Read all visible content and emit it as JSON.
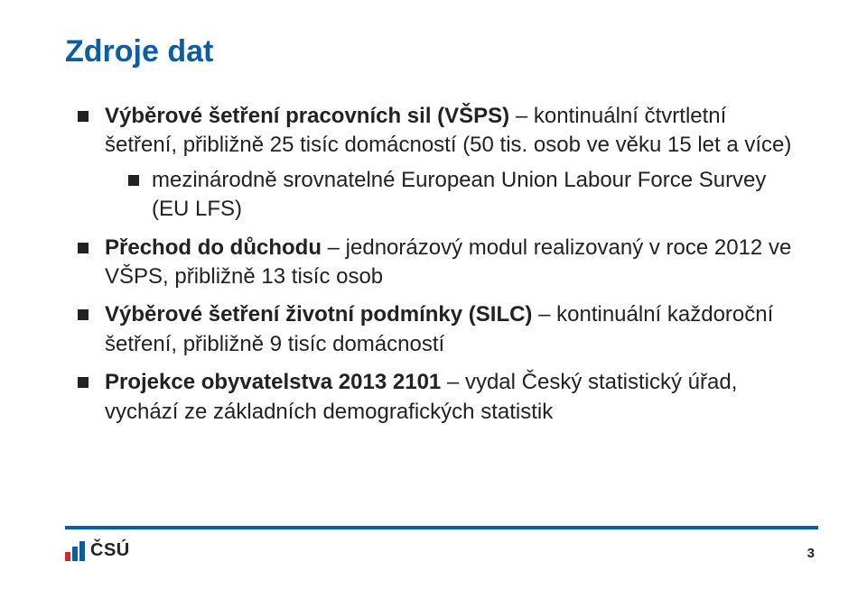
{
  "colors": {
    "accent": "#0b5da6",
    "text": "#222222",
    "background": "#ffffff",
    "logo_red": "#d8232a",
    "logo_blue": "#0b5da6"
  },
  "title": "Zdroje dat",
  "bullets": [
    {
      "runs": [
        {
          "text": "Výběrové šetření pracovních sil (VŠPS)",
          "bold": true
        },
        {
          "text": " – kontinuální čtvrtletní šetření, přibližně 25 tisíc domácností (50 tis. osob ve věku 15 let a více)",
          "bold": false
        }
      ],
      "children": [
        {
          "runs": [
            {
              "text": "mezinárodně srovnatelné European Union Labour Force Survey (EU LFS)",
              "bold": false
            }
          ]
        }
      ]
    },
    {
      "runs": [
        {
          "text": "Přechod do důchodu",
          "bold": true
        },
        {
          "text": " – jednorázový modul realizovaný v roce 2012 ve VŠPS, přibližně 13 tisíc osob",
          "bold": false
        }
      ]
    },
    {
      "runs": [
        {
          "text": "Výběrové šetření životní podmínky (SILC)",
          "bold": true
        },
        {
          "text": " – kontinuální každoroční šetření, přibližně 9 tisíc domácností",
          "bold": false
        }
      ]
    },
    {
      "runs": [
        {
          "text": "Projekce obyvatelstva 2013 2101",
          "bold": true
        },
        {
          "text": " – vydal Český statistický úřad, vychází ze základních demografických statistik",
          "bold": false
        }
      ]
    }
  ],
  "footer": {
    "page_number": "3",
    "logo_text": "ČSÚ",
    "logo_bars": [
      {
        "height": 10,
        "color": "#d8232a"
      },
      {
        "height": 16,
        "color": "#0b5da6"
      },
      {
        "height": 22,
        "color": "#0b5da6"
      }
    ]
  }
}
